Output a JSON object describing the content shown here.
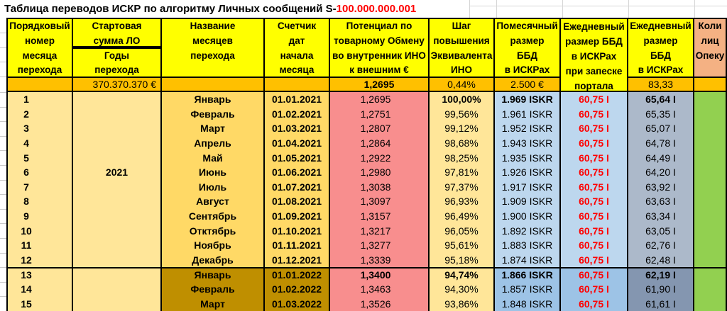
{
  "title": {
    "prefix": "Таблица переводов ИСКР по алгоритму Личных сообщений S-",
    "highlight": "100.000.000.001"
  },
  "headers": {
    "index": "Порядковый\nномер\nмесяца\nперехода",
    "start_sum": "Стартовая\nсумма ЛО",
    "years": "Годы\nперехода",
    "month_name": "Название\nмесяцев\nперехода",
    "date_counter": "Счетчик\nдат\nначала\nмесяца",
    "potential": "Потенциал по\nтоварному Обмену\nво внутренник ИНО\nк внешним €",
    "step": "Шаг\nповышения\nЭквивалента\nИНО",
    "monthly_bbd": "Помесячный\nразмер\nББД\nв ИСКРах",
    "daily_bbd_portal": "Ежедневный\nразмер ББД\nв ИСКРах\nпри запеске\nпортала",
    "daily_bbd": "Ежедневный\nразмер\nББД\nв ИСКРах",
    "guardians": "Коли\nлиц\nОпеку"
  },
  "summary_row": {
    "start_sum": "370.370.370 €",
    "potential": "1,2695",
    "step": "0,44%",
    "monthly_bbd": "2.500 €",
    "daily_bbd": "83,33"
  },
  "rows": [
    {
      "num": "1",
      "year_label": "",
      "month": "Январь",
      "date": "01.01.2021",
      "potential": "1,2695",
      "step": "100,00%",
      "monthly": "1.969 ISKR",
      "daily_portal": "60,75 I",
      "daily": "65,64 I"
    },
    {
      "num": "2",
      "year_label": "",
      "month": "Февраль",
      "date": "01.02.2021",
      "potential": "1,2751",
      "step": "99,56%",
      "monthly": "1.961 ISKR",
      "daily_portal": "60,75 I",
      "daily": "65,35 I"
    },
    {
      "num": "3",
      "year_label": "",
      "month": "Март",
      "date": "01.03.2021",
      "potential": "1,2807",
      "step": "99,12%",
      "monthly": "1.952 ISKR",
      "daily_portal": "60,75 I",
      "daily": "65,07 I"
    },
    {
      "num": "4",
      "year_label": "",
      "month": "Апрель",
      "date": "01.04.2021",
      "potential": "1,2864",
      "step": "98,68%",
      "monthly": "1.943 ISKR",
      "daily_portal": "60,75 I",
      "daily": "64,78 I"
    },
    {
      "num": "5",
      "year_label": "",
      "month": "Май",
      "date": "01.05.2021",
      "potential": "1,2922",
      "step": "98,25%",
      "monthly": "1.935 ISKR",
      "daily_portal": "60,75 I",
      "daily": "64,49 I"
    },
    {
      "num": "6",
      "year_label": "2021",
      "month": "Июнь",
      "date": "01.06.2021",
      "potential": "1,2980",
      "step": "97,81%",
      "monthly": "1.926 ISKR",
      "daily_portal": "60,75 I",
      "daily": "64,20 I"
    },
    {
      "num": "7",
      "year_label": "",
      "month": "Июль",
      "date": "01.07.2021",
      "potential": "1,3038",
      "step": "97,37%",
      "monthly": "1.917 ISKR",
      "daily_portal": "60,75 I",
      "daily": "63,92 I"
    },
    {
      "num": "8",
      "year_label": "",
      "month": "Август",
      "date": "01.08.2021",
      "potential": "1,3097",
      "step": "96,93%",
      "monthly": "1.909 ISKR",
      "daily_portal": "60,75 I",
      "daily": "63,63 I"
    },
    {
      "num": "9",
      "year_label": "",
      "month": "Сентябрь",
      "date": "01.09.2021",
      "potential": "1,3157",
      "step": "96,49%",
      "monthly": "1.900 ISKR",
      "daily_portal": "60,75 I",
      "daily": "63,34 I"
    },
    {
      "num": "10",
      "year_label": "",
      "month": "Отктябрь",
      "date": "01.10.2021",
      "potential": "1,3217",
      "step": "96,05%",
      "monthly": "1.892 ISKR",
      "daily_portal": "60,75 I",
      "daily": "63,05 I"
    },
    {
      "num": "11",
      "year_label": "",
      "month": "Ноябрь",
      "date": "01.11.2021",
      "potential": "1,3277",
      "step": "95,61%",
      "monthly": "1.883 ISKR",
      "daily_portal": "60,75 I",
      "daily": "62,76 I"
    },
    {
      "num": "12",
      "year_label": "",
      "month": "Декабрь",
      "date": "01.12.2021",
      "potential": "1,3339",
      "step": "95,18%",
      "monthly": "1.874 ISKR",
      "daily_portal": "60,75 I",
      "daily": "62,48 I"
    },
    {
      "num": "13",
      "year_label": "",
      "month": "Январь",
      "date": "01.01.2022",
      "potential": "1,3400",
      "step": "94,74%",
      "monthly": "1.866 ISKR",
      "daily_portal": "60,75 I",
      "daily": "62,19 I"
    },
    {
      "num": "14",
      "year_label": "",
      "month": "Февраль",
      "date": "01.02.2022",
      "potential": "1,3463",
      "step": "94,30%",
      "monthly": "1.857 ISKR",
      "daily_portal": "60,75 I",
      "daily": "61,90 I"
    },
    {
      "num": "15",
      "year_label": "",
      "month": "Март",
      "date": "01.03.2022",
      "potential": "1,3526",
      "step": "93,86%",
      "monthly": "1.848 ISKR",
      "daily_portal": "60,75 I",
      "daily": "61,61 I"
    }
  ],
  "colors": {
    "yellow": "#FFFF00",
    "orange": "#FFC000",
    "cream": "#FFE699",
    "gold": "#FFD966",
    "gold_dark": "#BF8F00",
    "pink": "#F88E8E",
    "blue_light": "#BDD7EE",
    "blue_mid": "#9DC3E6",
    "blue_gray": "#ACB9CA",
    "blue_gray_dark": "#8496B0",
    "green": "#92D050",
    "peach": "#F4B183",
    "red": "#FF0000",
    "border": "#000000"
  }
}
